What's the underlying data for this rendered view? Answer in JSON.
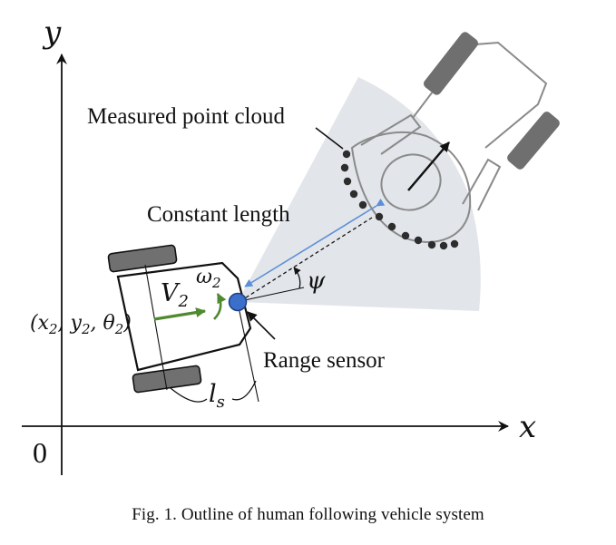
{
  "diagram": {
    "axes": {
      "x_label": "x",
      "y_label": "y",
      "origin_label": "0"
    },
    "labels": {
      "point_cloud": "Measured point cloud",
      "constant_length": "Constant length",
      "range_sensor": "Range sensor"
    },
    "math": {
      "pose_prefix": "(x",
      "pose_sub1": "2",
      "pose_mid1": ", y",
      "pose_sub2": "2",
      "pose_mid2": ", θ",
      "pose_sub3": "2",
      "pose_suffix": ")",
      "velocity": "V",
      "velocity_sub": "2",
      "omega": "ω",
      "omega_sub": "2",
      "psi": "ψ",
      "sensor_offset": "l",
      "sensor_offset_sub": "s"
    },
    "colors": {
      "axis": "#111111",
      "vehicle_outline": "#111111",
      "wheel": "#707070",
      "sensor_fill": "#3b6fc9",
      "sensor_stroke": "#1d3f86",
      "velocity_arrow": "#4f8a2f",
      "constant_length_arrow": "#5b8fd6",
      "sector_fill": "#e2e5ea",
      "human_outline": "#8a8a8a",
      "point_dot": "#2d2d2d"
    }
  },
  "caption": "Fig. 1.  Outline of human following vehicle system"
}
